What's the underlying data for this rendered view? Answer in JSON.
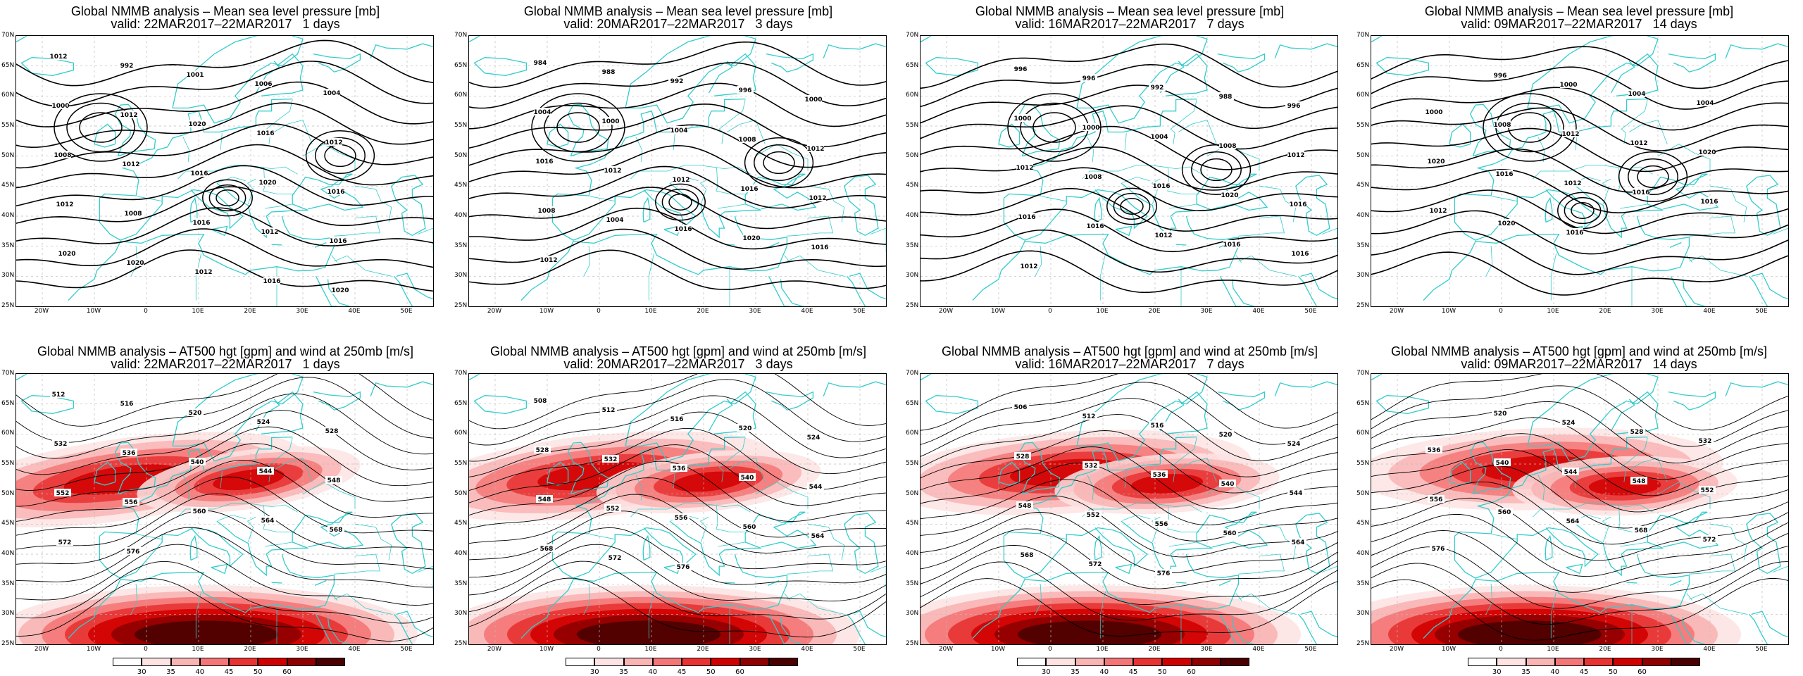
{
  "colors": {
    "coast": "#33cccc",
    "contour": "#000000",
    "grid": "#bbbbbb",
    "wind_shades": [
      "#fde3e3",
      "#f9b4b4",
      "#f47777",
      "#e83333",
      "#d10000",
      "#8f0000",
      "#4a0000"
    ]
  },
  "map": {
    "lat_labels": [
      "70N",
      "65N",
      "60N",
      "55N",
      "50N",
      "45N",
      "40N",
      "35N",
      "30N",
      "25N"
    ],
    "lon_labels": [
      "20W",
      "10W",
      "0",
      "10E",
      "20E",
      "30E",
      "40E",
      "50E"
    ]
  },
  "panels": [
    {
      "title": "Global NMMB analysis – Mean sea level pressure [mb]",
      "valid": "valid: 22MAR2017–22MAR2017   1 days",
      "labels": [
        "1012",
        "992",
        "1001",
        "1006",
        "1004",
        "1000",
        "1012",
        "1020",
        "1016",
        "1012",
        "1008",
        "1012",
        "1016",
        "1020",
        "1016",
        "1012",
        "1008",
        "1016",
        "1012",
        "1016",
        "1020",
        "1020",
        "1012",
        "1016",
        "1020"
      ]
    },
    {
      "title": "Global NMMB analysis – Mean sea level pressure [mb]",
      "valid": "valid: 20MAR2017–22MAR2017   3 days",
      "labels": [
        "984",
        "988",
        "992",
        "996",
        "1000",
        "1004",
        "1000",
        "1004",
        "1008",
        "1012",
        "1016",
        "1012",
        "1012",
        "1016",
        "1012",
        "1008",
        "1004",
        "1016",
        "1020",
        "1016",
        "1012"
      ]
    },
    {
      "title": "Global NMMB analysis – Mean sea level pressure [mb]",
      "valid": "valid: 16MAR2017–22MAR2017   7 days",
      "labels": [
        "996",
        "996",
        "992",
        "988",
        "996",
        "1000",
        "1000",
        "1004",
        "1008",
        "1012",
        "1012",
        "1008",
        "1016",
        "1020",
        "1016",
        "1016",
        "1016",
        "1012",
        "1016",
        "1016",
        "1012"
      ]
    },
    {
      "title": "Global NMMB analysis – Mean sea level pressure [mb]",
      "valid": "valid: 09MAR2017–22MAR2017   14 days",
      "labels": [
        "996",
        "1000",
        "1004",
        "1004",
        "1000",
        "1008",
        "1012",
        "1012",
        "1020",
        "1020",
        "1016",
        "1012",
        "1016",
        "1016",
        "1012",
        "1020",
        "1016"
      ]
    },
    {
      "title": "Global NMMB analysis – AT500 hgt [gpm] and wind at 250mb [m/s]",
      "valid": "valid: 22MAR2017–22MAR2017   1 days",
      "labels": [
        "512",
        "516",
        "520",
        "524",
        "528",
        "532",
        "536",
        "540",
        "544",
        "548",
        "552",
        "556",
        "560",
        "564",
        "568",
        "572",
        "576"
      ]
    },
    {
      "title": "Global NMMB analysis – AT500 hgt [gpm] and wind at 250mb [m/s]",
      "valid": "valid: 20MAR2017–22MAR2017   3 days",
      "labels": [
        "508",
        "512",
        "516",
        "520",
        "524",
        "528",
        "532",
        "536",
        "540",
        "544",
        "548",
        "552",
        "556",
        "560",
        "564",
        "568",
        "572",
        "576"
      ]
    },
    {
      "title": "Global NMMB analysis – AT500 hgt [gpm] and wind at 250mb [m/s]",
      "valid": "valid: 16MAR2017–22MAR2017   7 days",
      "labels": [
        "506",
        "512",
        "516",
        "520",
        "524",
        "528",
        "532",
        "536",
        "540",
        "544",
        "548",
        "552",
        "556",
        "560",
        "564",
        "568",
        "572",
        "576"
      ]
    },
    {
      "title": "Global NMMB analysis – AT500 hgt [gpm] and wind at 250mb [m/s]",
      "valid": "valid: 09MAR2017–22MAR2017   14 days",
      "labels": [
        "520",
        "524",
        "528",
        "532",
        "536",
        "540",
        "544",
        "548",
        "552",
        "556",
        "560",
        "564",
        "568",
        "572",
        "576"
      ]
    }
  ],
  "colorbar": {
    "ticks": [
      "30",
      "35",
      "40",
      "45",
      "50",
      "60"
    ]
  }
}
